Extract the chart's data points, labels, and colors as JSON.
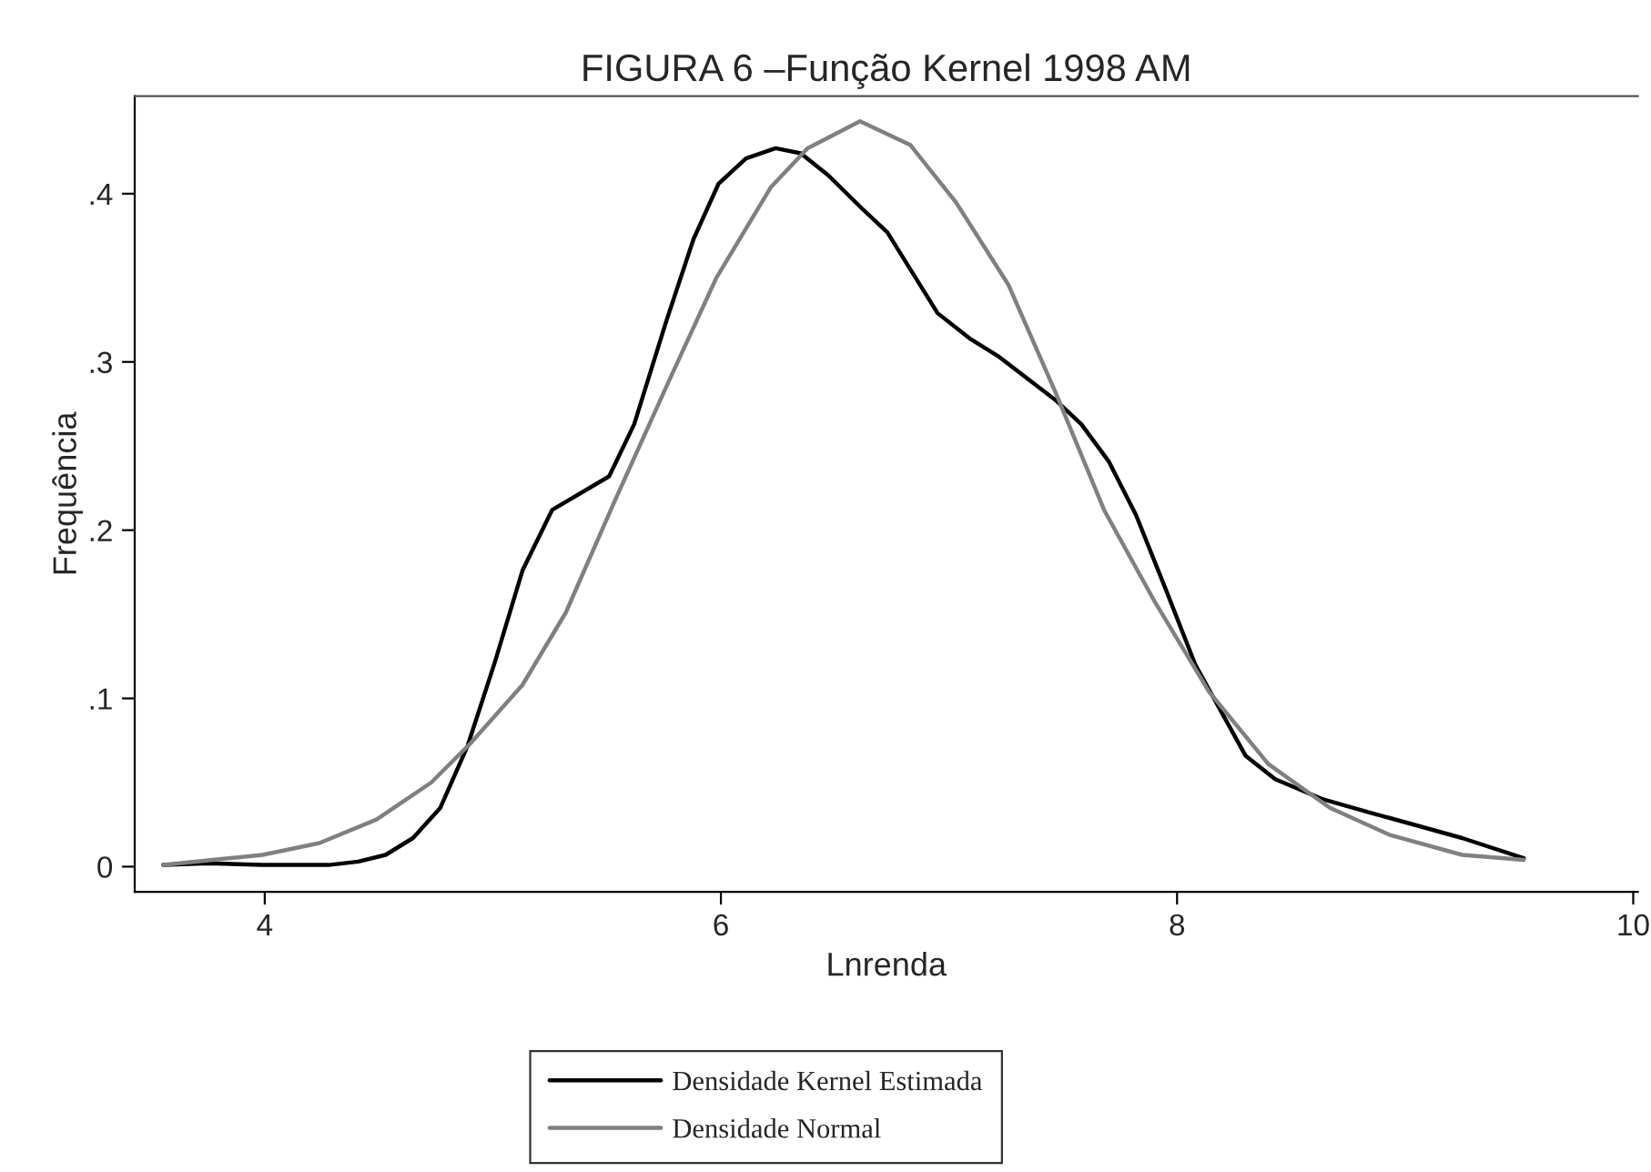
{
  "chart_data": {
    "type": "line",
    "title": "FIGURA 6 –Função Kernel 1998 AM",
    "xlabel": "Lnrenda",
    "ylabel": "Frequência",
    "xlim": [
      3.43,
      10.02
    ],
    "ylim": [
      -0.015,
      0.458
    ],
    "xticks": [
      4,
      6,
      8,
      10
    ],
    "yticks": [
      {
        "value": 0,
        "label": "0"
      },
      {
        "value": 0.1,
        "label": ".1"
      },
      {
        "value": 0.2,
        "label": ".2"
      },
      {
        "value": 0.3,
        "label": ".3"
      },
      {
        "value": 0.4,
        "label": ".4"
      }
    ],
    "grid": false,
    "legend": "bottom",
    "line_style": "solid",
    "series": [
      {
        "name": "Densidade Kernel Estimada",
        "color": "#000000",
        "x": [
          3.555,
          3.75,
          3.99,
          4.28,
          4.41,
          4.53,
          4.65,
          4.77,
          4.89,
          5.01,
          5.13,
          5.26,
          5.51,
          5.62,
          5.76,
          5.88,
          5.99,
          6.11,
          6.24,
          6.35,
          6.47,
          6.62,
          6.73,
          6.95,
          7.09,
          7.22,
          7.47,
          7.58,
          7.7,
          7.82,
          7.95,
          8.08,
          8.3,
          8.43,
          8.64,
          8.85,
          9.25,
          9.52
        ],
        "values": [
          0.001,
          0.002,
          0.001,
          0.001,
          0.003,
          0.007,
          0.017,
          0.035,
          0.072,
          0.122,
          0.176,
          0.212,
          0.232,
          0.263,
          0.324,
          0.373,
          0.406,
          0.421,
          0.427,
          0.424,
          0.411,
          0.391,
          0.377,
          0.329,
          0.314,
          0.303,
          0.277,
          0.263,
          0.241,
          0.209,
          0.165,
          0.12,
          0.066,
          0.052,
          0.04,
          0.032,
          0.017,
          0.005
        ]
      },
      {
        "name": "Densidade Normal",
        "color": "#808080",
        "x": [
          3.555,
          3.99,
          4.24,
          4.49,
          4.73,
          4.9,
          5.13,
          5.32,
          5.53,
          5.77,
          5.98,
          6.22,
          6.38,
          6.61,
          6.83,
          7.03,
          7.26,
          7.47,
          7.68,
          7.9,
          8.14,
          8.4,
          8.67,
          8.93,
          9.25,
          9.52
        ],
        "values": [
          0.001,
          0.007,
          0.014,
          0.028,
          0.05,
          0.073,
          0.108,
          0.151,
          0.216,
          0.288,
          0.35,
          0.404,
          0.427,
          0.443,
          0.429,
          0.395,
          0.346,
          0.281,
          0.212,
          0.158,
          0.104,
          0.061,
          0.035,
          0.019,
          0.007,
          0.004
        ]
      }
    ]
  }
}
